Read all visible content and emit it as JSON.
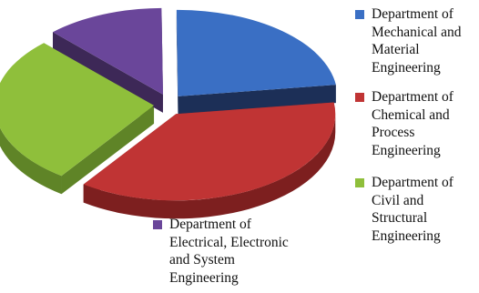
{
  "chart_data": {
    "type": "pie",
    "style": "3d-exploded",
    "title": "",
    "legend_position": "right",
    "series": [
      {
        "name": "Department of Mechanical and Material Engineering",
        "label": "Department of\nMechanical and\nMaterial\nEngineering",
        "value": 23,
        "color": "#3a6fc4",
        "side_color": "#1c2f57"
      },
      {
        "name": "Department of Chemical and Process Engineering",
        "label": "Department of\nChemical and\nProcess\nEngineering",
        "value": 37,
        "color": "#c03434",
        "side_color": "#7d1f1f"
      },
      {
        "name": "Department of Civil and Structural Engineering",
        "label": "Department of\nCivil and\nStructural\nEngineering",
        "value": 28,
        "color": "#8fbf3b",
        "side_color": "#5f8427"
      },
      {
        "name": "Department of Electrical, Electronic and System Engineering",
        "label": "Department of\nElectrical, Electronic\nand System\nEngineering",
        "value": 12,
        "color": "#6a469a",
        "side_color": "#3d2857"
      }
    ]
  }
}
